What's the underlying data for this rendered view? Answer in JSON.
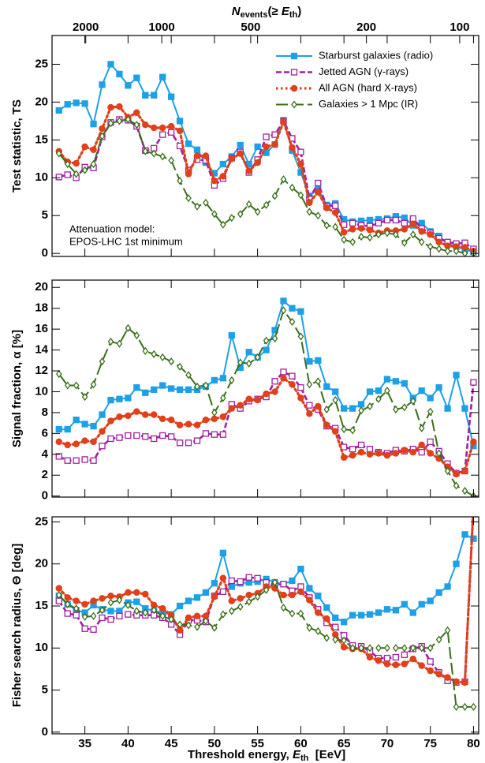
{
  "chart_data": [
    {
      "type": "line",
      "x2label": [
        "N",
        "events",
        "(≥ ",
        "E",
        "th",
        ")"
      ],
      "x2ticks": [
        {
          "value": 35.1,
          "label": "2000"
        },
        {
          "value": 43.9,
          "label": "1000"
        },
        {
          "value": 54.2,
          "label": "500"
        },
        {
          "value": 67.6,
          "label": "200"
        },
        {
          "value": 78.4,
          "label": "100"
        }
      ],
      "ylabel": "Test statistic, TS",
      "ylim": [
        -0.4,
        28.8
      ],
      "yticks": [
        0,
        5,
        10,
        15,
        20,
        25
      ],
      "annotation": [
        "Attenuation model:",
        "EPOS-LHC 1st minimum"
      ],
      "legend": "upper right",
      "x": [
        32,
        33,
        34,
        35,
        36,
        37,
        38,
        39,
        40,
        41,
        42,
        43,
        44,
        45,
        46,
        47,
        48,
        49,
        50,
        51,
        52,
        53,
        54,
        55,
        56,
        57,
        58,
        59,
        60,
        61,
        62,
        63,
        64,
        65,
        66,
        67,
        68,
        69,
        70,
        71,
        72,
        73,
        74,
        75,
        76,
        77,
        78,
        79,
        80
      ],
      "series": [
        {
          "name": "Starburst galaxies (radio)",
          "color": "#1ea0e6",
          "dash": "solid",
          "marker": "square",
          "marker_fill": true,
          "values": [
            18.9,
            19.7,
            19.9,
            19.8,
            17.1,
            22.3,
            25.0,
            23.7,
            22.2,
            23.2,
            20.9,
            20.9,
            23.3,
            20.7,
            17.5,
            14.5,
            13.7,
            12.0,
            10.6,
            11.8,
            12.8,
            14.3,
            11.8,
            14.1,
            13.3,
            14.4,
            17.6,
            13.6,
            10.7,
            7.6,
            8.5,
            6.4,
            6.6,
            4.5,
            4.2,
            4.3,
            4.4,
            4.5,
            4.6,
            4.9,
            4.7,
            3.7,
            4.0,
            2.9,
            2.3,
            1.3,
            0.9,
            0.5,
            0.2
          ]
        },
        {
          "name": "Jetted AGN (γ-rays)",
          "color": "#a020a0",
          "dash": "dashed",
          "marker": "square",
          "marker_fill": false,
          "values": [
            10.1,
            10.4,
            10.0,
            11.4,
            11.3,
            15.4,
            17.3,
            17.7,
            17.6,
            16.8,
            13.6,
            13.9,
            15.7,
            16.0,
            14.2,
            11.0,
            12.4,
            12.3,
            9.0,
            9.9,
            12.6,
            13.4,
            10.7,
            12.4,
            15.4,
            15.7,
            17.5,
            15.2,
            13.4,
            7.2,
            9.3,
            6.2,
            6.3,
            3.8,
            4.0,
            3.7,
            3.6,
            4.0,
            4.4,
            4.4,
            4.0,
            4.6,
            3.3,
            2.7,
            2.0,
            1.5,
            1.3,
            1.4,
            0.6
          ]
        },
        {
          "name": "All AGN (hard X-rays)",
          "color": "#e0401a",
          "dash": "dotted",
          "marker": "circle",
          "marker_fill": true,
          "values": [
            13.5,
            12.1,
            11.9,
            14.1,
            13.7,
            16.5,
            19.3,
            19.4,
            18.0,
            18.6,
            17.0,
            16.6,
            16.6,
            16.8,
            16.2,
            10.5,
            12.9,
            12.9,
            9.6,
            10.2,
            12.5,
            13.2,
            10.9,
            12.0,
            14.1,
            14.4,
            17.4,
            14.0,
            11.8,
            6.7,
            8.1,
            6.0,
            5.4,
            2.8,
            3.2,
            3.3,
            3.1,
            2.7,
            3.0,
            3.0,
            3.2,
            3.9,
            2.9,
            2.5,
            1.5,
            1.0,
            0.9,
            0.8,
            0.3
          ]
        },
        {
          "name": "Galaxies > 1 Mpc (IR)",
          "color": "#3a6e1a",
          "dash": "longdash",
          "marker": "diamond",
          "marker_fill": false,
          "values": [
            13.2,
            11.8,
            10.5,
            11.0,
            11.8,
            15.5,
            17.2,
            17.5,
            17.7,
            17.0,
            13.5,
            13.2,
            12.8,
            12.3,
            9.6,
            7.3,
            6.2,
            6.7,
            5.2,
            3.8,
            4.7,
            5.2,
            6.5,
            5.5,
            6.4,
            7.6,
            9.8,
            8.7,
            7.7,
            5.5,
            5.0,
            3.7,
            3.5,
            1.8,
            1.5,
            2.2,
            2.1,
            2.5,
            2.7,
            2.5,
            1.4,
            2.5,
            1.5,
            0.9,
            0.6,
            0.3,
            0.3,
            0.0,
            0.0
          ]
        }
      ]
    },
    {
      "type": "line",
      "ylabel": "Signal fraction, α  [%]",
      "ylim": [
        -0.1,
        20.7
      ],
      "yticks": [
        0,
        2,
        4,
        6,
        8,
        10,
        12,
        14,
        16,
        18,
        20
      ],
      "x": [
        32,
        33,
        34,
        35,
        36,
        37,
        38,
        39,
        40,
        41,
        42,
        43,
        44,
        45,
        46,
        47,
        48,
        49,
        50,
        51,
        52,
        53,
        54,
        55,
        56,
        57,
        58,
        59,
        60,
        61,
        62,
        63,
        64,
        65,
        66,
        67,
        68,
        69,
        70,
        71,
        72,
        73,
        74,
        75,
        76,
        77,
        78,
        79,
        80
      ],
      "series": [
        {
          "color": "#1ea0e6",
          "dash": "solid",
          "marker": "square",
          "marker_fill": true,
          "values": [
            6.4,
            6.4,
            7.3,
            6.9,
            6.7,
            7.8,
            9.2,
            9.3,
            9.4,
            10.4,
            9.9,
            10.2,
            10.6,
            10.3,
            10.2,
            10.2,
            10.2,
            10.5,
            11.1,
            11.3,
            15.4,
            12.3,
            13.8,
            13.3,
            14.0,
            15.9,
            18.7,
            18.0,
            17.7,
            12.9,
            13.0,
            10.5,
            10.0,
            8.4,
            8.4,
            8.8,
            10.0,
            10.1,
            11.2,
            11.0,
            10.8,
            9.4,
            10.1,
            9.4,
            10.4,
            8.4,
            11.6,
            8.4,
            4.8
          ]
        },
        {
          "color": "#a020a0",
          "dash": "dashed",
          "marker": "square",
          "marker_fill": false,
          "values": [
            3.8,
            3.4,
            3.4,
            3.5,
            3.4,
            4.8,
            5.5,
            5.6,
            5.8,
            5.8,
            5.7,
            5.5,
            5.8,
            5.7,
            5.1,
            5.1,
            5.3,
            6.0,
            5.9,
            5.9,
            8.8,
            8.4,
            9.1,
            9.3,
            9.5,
            11.0,
            11.9,
            11.5,
            10.4,
            8.7,
            8.3,
            6.7,
            6.5,
            4.7,
            4.5,
            4.9,
            4.5,
            4.2,
            4.1,
            4.4,
            4.3,
            4.5,
            4.2,
            5.2,
            4.3,
            3.1,
            2.2,
            2.4,
            10.9
          ]
        },
        {
          "color": "#e0401a",
          "dash": "dotted",
          "marker": "circle",
          "marker_fill": true,
          "values": [
            5.2,
            4.9,
            5.0,
            5.3,
            5.2,
            6.2,
            7.2,
            7.6,
            7.7,
            8.1,
            7.8,
            7.8,
            7.4,
            7.3,
            6.8,
            6.9,
            6.8,
            7.3,
            7.4,
            7.6,
            8.4,
            8.7,
            9.3,
            9.2,
            9.8,
            10.0,
            11.3,
            10.7,
            9.4,
            7.9,
            8.6,
            6.8,
            6.2,
            3.7,
            3.9,
            4.2,
            4.0,
            4.1,
            3.9,
            4.1,
            4.4,
            4.2,
            4.9,
            4.1,
            3.6,
            2.8,
            2.1,
            2.4,
            5.2
          ]
        },
        {
          "color": "#3a6e1a",
          "dash": "longdash",
          "marker": "diamond",
          "marker_fill": false,
          "values": [
            11.7,
            10.6,
            10.6,
            9.5,
            10.7,
            12.9,
            14.8,
            14.6,
            16.1,
            15.4,
            13.9,
            13.6,
            13.3,
            12.9,
            12.4,
            11.6,
            10.5,
            10.6,
            8.0,
            9.4,
            11.1,
            12.8,
            12.7,
            13.3,
            14.9,
            15.1,
            17.8,
            16.7,
            15.3,
            10.7,
            11.0,
            8.3,
            9.2,
            6.4,
            6.3,
            8.2,
            8.6,
            9.3,
            10.1,
            8.3,
            8.5,
            9.1,
            6.5,
            8.1,
            4.1,
            2.4,
            1.0,
            0.5,
            0.0
          ]
        }
      ]
    },
    {
      "type": "line",
      "ylabel": "Fisher search radius, Θ  [deg]",
      "ylim": [
        -0.2,
        25.6
      ],
      "yticks": [
        0,
        5,
        10,
        15,
        20,
        25
      ],
      "xlabel": [
        "Threshold energy, ",
        "E",
        "th",
        "  [EeV]"
      ],
      "xlim": [
        31.2,
        80.6
      ],
      "xticks": [
        35,
        40,
        45,
        50,
        55,
        60,
        65,
        70,
        75,
        80
      ],
      "x": [
        32,
        33,
        34,
        35,
        36,
        37,
        38,
        39,
        40,
        41,
        42,
        43,
        44,
        45,
        46,
        47,
        48,
        49,
        50,
        51,
        52,
        53,
        54,
        55,
        56,
        57,
        58,
        59,
        60,
        61,
        62,
        63,
        64,
        65,
        66,
        67,
        68,
        69,
        70,
        71,
        72,
        73,
        74,
        75,
        76,
        77,
        78,
        79,
        80
      ],
      "series": [
        {
          "color": "#1ea0e6",
          "dash": "solid",
          "marker": "square",
          "marker_fill": true,
          "values": [
            16.2,
            15.2,
            14.5,
            14.2,
            15.1,
            14.6,
            14.4,
            14.4,
            15.4,
            15.5,
            14.7,
            14.4,
            14.2,
            14.0,
            15.0,
            15.6,
            16.0,
            16.6,
            17.7,
            21.3,
            17.3,
            17.7,
            17.8,
            17.9,
            18.2,
            17.8,
            17.6,
            18.0,
            19.4,
            17.1,
            16.2,
            14.8,
            13.6,
            13.1,
            13.9,
            13.9,
            14.0,
            14.2,
            14.6,
            14.5,
            15.2,
            14.2,
            15.2,
            15.6,
            16.6,
            17.3,
            20.0,
            23.5,
            23.0
          ]
        },
        {
          "color": "#a020a0",
          "dash": "dashed",
          "marker": "square",
          "marker_fill": false,
          "values": [
            15.6,
            14.1,
            13.9,
            12.3,
            12.2,
            13.6,
            13.4,
            13.8,
            14.0,
            13.9,
            13.9,
            13.9,
            13.6,
            12.8,
            11.6,
            13.3,
            13.3,
            13.1,
            16.2,
            16.7,
            18.0,
            17.9,
            18.4,
            18.3,
            17.8,
            17.5,
            17.6,
            16.8,
            17.3,
            16.0,
            14.6,
            13.0,
            12.5,
            11.5,
            10.3,
            10.2,
            9.6,
            8.8,
            8.8,
            8.9,
            9.2,
            9.9,
            10.2,
            8.4,
            7.1,
            6.1,
            5.9,
            6.0,
            27.0
          ]
        },
        {
          "color": "#e0401a",
          "dash": "dotted",
          "marker": "circle",
          "marker_fill": true,
          "values": [
            17.1,
            16.0,
            15.6,
            15.2,
            15.6,
            15.9,
            16.2,
            16.1,
            16.6,
            16.6,
            16.4,
            15.1,
            14.7,
            13.9,
            12.1,
            13.6,
            13.8,
            13.8,
            16.1,
            18.3,
            15.6,
            15.9,
            16.3,
            16.5,
            17.3,
            17.1,
            16.3,
            16.3,
            16.7,
            15.7,
            14.2,
            13.5,
            11.6,
            10.1,
            9.9,
            9.9,
            8.9,
            8.5,
            8.1,
            8.0,
            8.1,
            8.7,
            7.9,
            7.3,
            6.9,
            6.5,
            6.0,
            5.9,
            27.0
          ]
        },
        {
          "color": "#3a6e1a",
          "dash": "longdash",
          "marker": "diamond",
          "marker_fill": false,
          "values": [
            16.3,
            15.2,
            14.7,
            13.7,
            13.8,
            14.5,
            15.4,
            15.7,
            15.1,
            14.4,
            14.2,
            14.5,
            13.8,
            13.4,
            12.8,
            12.7,
            12.5,
            13.2,
            12.4,
            14.0,
            14.4,
            14.9,
            15.5,
            16.1,
            16.9,
            17.8,
            14.8,
            14.1,
            14.1,
            12.4,
            12.0,
            11.2,
            11.0,
            10.9,
            10.0,
            10.0,
            10.0,
            10.0,
            10.0,
            10.0,
            10.0,
            10.0,
            10.0,
            10.0,
            11.0,
            12.1,
            3.0,
            3.0,
            3.0
          ]
        }
      ]
    }
  ]
}
